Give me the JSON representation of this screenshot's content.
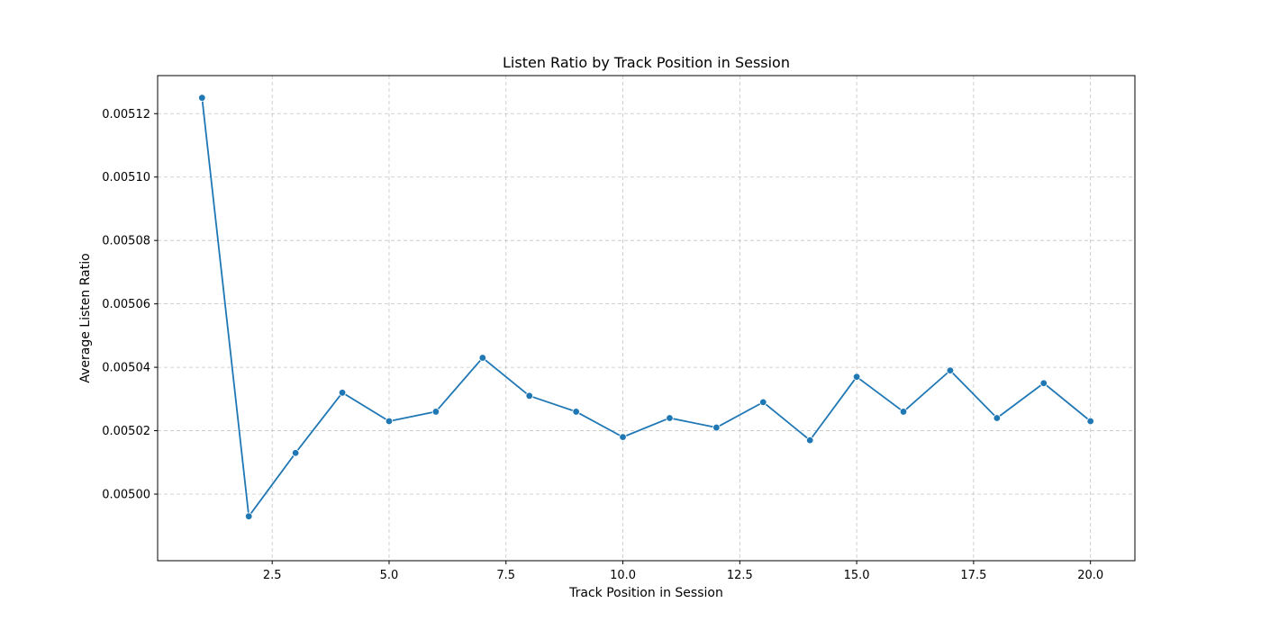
{
  "chart_data": {
    "type": "line",
    "title": "Listen Ratio by Track Position in Session",
    "xlabel": "Track Position in Session",
    "ylabel": "Average Listen Ratio",
    "xlim": [
      0.05,
      20.95
    ],
    "ylim": [
      0.004979,
      0.005132
    ],
    "xticks": [
      2.5,
      5.0,
      7.5,
      10.0,
      12.5,
      15.0,
      17.5,
      20.0
    ],
    "xtick_labels": [
      "2.5",
      "5.0",
      "7.5",
      "10.0",
      "12.5",
      "15.0",
      "17.5",
      "20.0"
    ],
    "yticks": [
      0.005,
      0.00502,
      0.00504,
      0.00506,
      0.00508,
      0.0051,
      0.00512
    ],
    "ytick_labels": [
      "0.00500",
      "0.00502",
      "0.00504",
      "0.00506",
      "0.00508",
      "0.00510",
      "0.00512"
    ],
    "grid": true,
    "grid_style": "dashed",
    "marker": "circle",
    "color": "#1f77b4",
    "series": [
      {
        "x": [
          1,
          2,
          3,
          4,
          5,
          6,
          7,
          8,
          9,
          10,
          11,
          12,
          13,
          14,
          15,
          16,
          17,
          18,
          19,
          20
        ],
        "values": [
          0.005125,
          0.004993,
          0.005013,
          0.005032,
          0.005023,
          0.005026,
          0.005043,
          0.005031,
          0.005026,
          0.005018,
          0.005024,
          0.005021,
          0.005029,
          0.005017,
          0.005037,
          0.005026,
          0.005039,
          0.005024,
          0.005035,
          0.005023
        ]
      }
    ]
  }
}
